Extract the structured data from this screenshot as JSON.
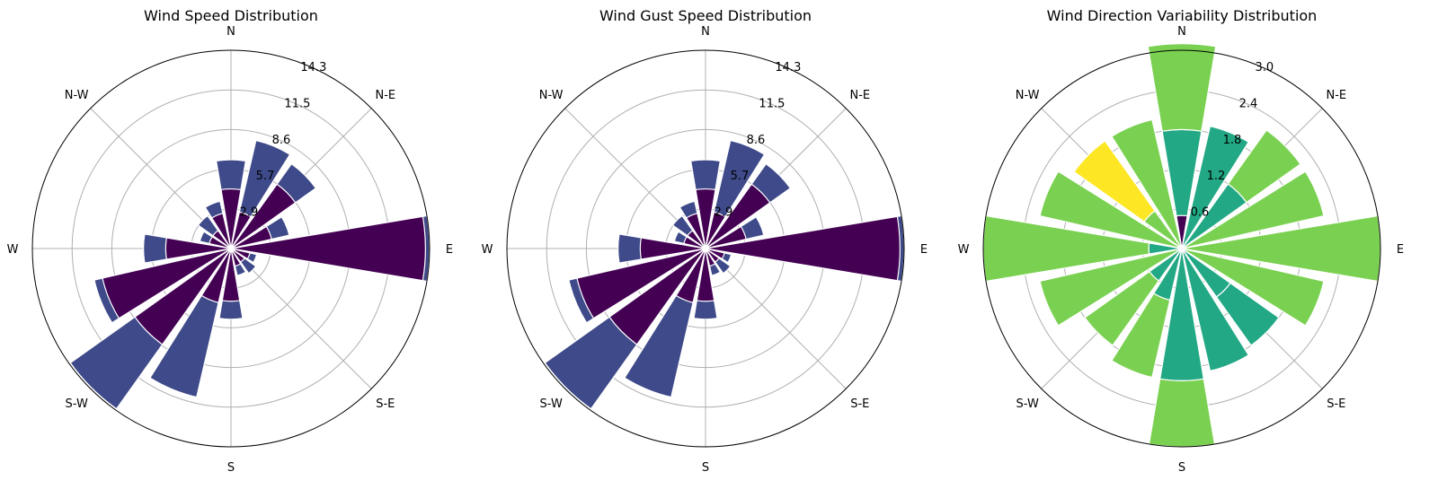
{
  "chart_data": [
    {
      "type": "wind-rose",
      "title": "Wind Speed Distribution",
      "direction_labels": [
        "E",
        "N-E",
        "N",
        "N-W",
        "W",
        "S-W",
        "S",
        "S-E"
      ],
      "rticks": [
        "2.9",
        "5.7",
        "8.6",
        "11.5",
        "14.3"
      ],
      "rmax": 14.3,
      "sectors_deg": [
        90,
        67.5,
        45,
        22.5,
        0,
        337.5,
        315,
        292.5,
        270,
        247.5,
        225,
        202.5,
        180,
        157.5,
        135,
        112.5
      ],
      "series": [
        {
          "values": [
            4.3,
            2.7,
            5.7,
            3.0,
            14.0,
            1.4,
            1.2,
            1.3,
            3.8,
            4.0,
            8.5,
            9.5,
            4.7,
            1.6,
            1.6,
            2.6
          ]
        },
        {
          "values": [
            6.4,
            8.0,
            7.5,
            4.3,
            14.3,
            1.9,
            2.2,
            2.0,
            5.1,
            11.0,
            14.2,
            10.1,
            6.3,
            2.3,
            2.9,
            3.5
          ]
        }
      ],
      "colors": [
        "#440154",
        "#3e4a89"
      ]
    },
    {
      "type": "wind-rose",
      "title": "Wind Gust Speed Distribution",
      "direction_labels": [
        "E",
        "N-E",
        "N",
        "N-W",
        "W",
        "S-W",
        "S",
        "S-E"
      ],
      "rticks": [
        "2.9",
        "5.7",
        "8.6",
        "11.5",
        "14.3"
      ],
      "rmax": 14.3,
      "sectors_deg": [
        90,
        67.5,
        45,
        22.5,
        0,
        337.5,
        315,
        292.5,
        270,
        247.5,
        225,
        202.5,
        180,
        157.5,
        135,
        112.5
      ],
      "series": [
        {
          "values": [
            4.3,
            2.7,
            5.7,
            3.0,
            14.0,
            1.4,
            1.2,
            1.3,
            3.8,
            4.0,
            8.5,
            9.5,
            4.7,
            1.6,
            1.6,
            2.6
          ]
        },
        {
          "values": [
            6.4,
            8.0,
            7.5,
            4.3,
            14.3,
            1.9,
            2.2,
            2.0,
            5.1,
            11.0,
            14.2,
            10.1,
            6.3,
            2.3,
            2.9,
            3.5
          ]
        }
      ],
      "colors": [
        "#440154",
        "#3e4a89"
      ]
    },
    {
      "type": "wind-rose",
      "title": "Wind Direction Variability Distribution",
      "direction_labels": [
        "E",
        "N-E",
        "N",
        "N-W",
        "W",
        "S-W",
        "S",
        "S-E"
      ],
      "rticks": [
        "0.6",
        "1.2",
        "1.8",
        "2.4",
        "3.0"
      ],
      "rmax": 3.0,
      "sectors_deg": [
        90,
        67.5,
        45,
        22.5,
        0,
        337.5,
        315,
        292.5,
        270,
        247.5,
        225,
        202.5,
        180,
        157.5,
        135,
        112.5
      ],
      "series": [
        {
          "values": [
            0.5,
            1.0,
            0.8,
            1.2,
            0.5,
            0.5,
            0.5,
            0.5,
            0.5,
            1.0,
            1.3,
            2.0,
            1.0,
            1.0,
            1.0,
            1.0
          ],
          "color": "#22a884"
        },
        {
          "values": [
            1.0,
            1.0,
            1.0,
            1.0,
            1.0,
            1.0,
            1.0,
            1.0,
            1.0,
            1.0,
            1.0,
            1.0,
            1.0,
            1.0,
            1.0,
            1.0
          ],
          "color": "#7ad151"
        },
        {
          "values": [
            0.0,
            0.0,
            0.0,
            0.0,
            0.0,
            0.0,
            0.3,
            0.0,
            0.0,
            0.0,
            0.0,
            0.0,
            0.0,
            0.0,
            0.0,
            0.0
          ],
          "color": "#fde725"
        }
      ],
      "radial_values": [
        [
          0.47,
          0.0,
          0.0
        ],
        [
          0.0,
          0.0,
          0.0
        ],
        [
          0.0,
          0.0,
          0.0
        ],
        [
          0.0,
          0.0,
          0.0
        ],
        [
          0.0,
          0.0,
          0.0
        ],
        [
          0.0,
          0.0,
          0.0
        ],
        [
          0.0,
          0.0,
          0.0
        ],
        [
          0.0,
          0.0,
          0.0
        ],
        [
          0.0,
          0.0,
          0.0
        ],
        [
          0.0,
          0.0,
          0.0
        ],
        [
          0.0,
          0.0,
          0.0
        ],
        [
          0.0,
          0.0,
          0.0
        ],
        [
          0.0,
          0.0,
          0.0
        ],
        [
          0.0,
          0.0,
          0.0
        ],
        [
          0.0,
          0.0,
          0.0
        ],
        [
          0.0,
          0.0,
          0.0
        ]
      ],
      "stacks": [
        {
          "dir": "N",
          "segments": [
            {
              "v": 0.5,
              "c": "#440154"
            },
            {
              "v": 1.3,
              "c": "#22a884"
            },
            {
              "v": 1.3,
              "c": "#7ad151"
            }
          ]
        },
        {
          "dir": "NNE",
          "segments": [
            {
              "v": 1.9,
              "c": "#22a884"
            }
          ]
        },
        {
          "dir": "NE",
          "segments": [
            {
              "v": 1.2,
              "c": "#22a884"
            },
            {
              "v": 1.0,
              "c": "#7ad151"
            }
          ]
        },
        {
          "dir": "ENE",
          "segments": [
            {
              "v": 2.2,
              "c": "#7ad151"
            }
          ]
        },
        {
          "dir": "E",
          "segments": [
            {
              "v": 3.0,
              "c": "#7ad151"
            }
          ]
        },
        {
          "dir": "ESE",
          "segments": [
            {
              "v": 2.2,
              "c": "#7ad151"
            }
          ]
        },
        {
          "dir": "SE",
          "segments": [
            {
              "v": 0.9,
              "c": "#22a884"
            },
            {
              "v": 0.9,
              "c": "#22a884"
            }
          ]
        },
        {
          "dir": "SSE",
          "segments": [
            {
              "v": 1.9,
              "c": "#22a884"
            }
          ]
        },
        {
          "dir": "S",
          "segments": [
            {
              "v": 2.0,
              "c": "#22a884"
            },
            {
              "v": 1.0,
              "c": "#7ad151"
            }
          ]
        },
        {
          "dir": "SSW",
          "segments": [
            {
              "v": 0.8,
              "c": "#22a884"
            },
            {
              "v": 1.2,
              "c": "#7ad151"
            }
          ]
        },
        {
          "dir": "SW",
          "segments": [
            {
              "v": 0.6,
              "c": "#22a884"
            },
            {
              "v": 1.2,
              "c": "#7ad151"
            }
          ]
        },
        {
          "dir": "WSW",
          "segments": [
            {
              "v": 2.2,
              "c": "#7ad151"
            }
          ]
        },
        {
          "dir": "W",
          "segments": [
            {
              "v": 0.5,
              "c": "#22a884"
            },
            {
              "v": 2.5,
              "c": "#7ad151"
            }
          ]
        },
        {
          "dir": "WNW",
          "segments": [
            {
              "v": 2.2,
              "c": "#7ad151"
            }
          ]
        },
        {
          "dir": "NW",
          "segments": [
            {
              "v": 0.7,
              "c": "#7ad151"
            },
            {
              "v": 1.3,
              "c": "#fde725"
            }
          ]
        },
        {
          "dir": "NNW",
          "segments": [
            {
              "v": 2.0,
              "c": "#7ad151"
            }
          ]
        }
      ]
    }
  ]
}
